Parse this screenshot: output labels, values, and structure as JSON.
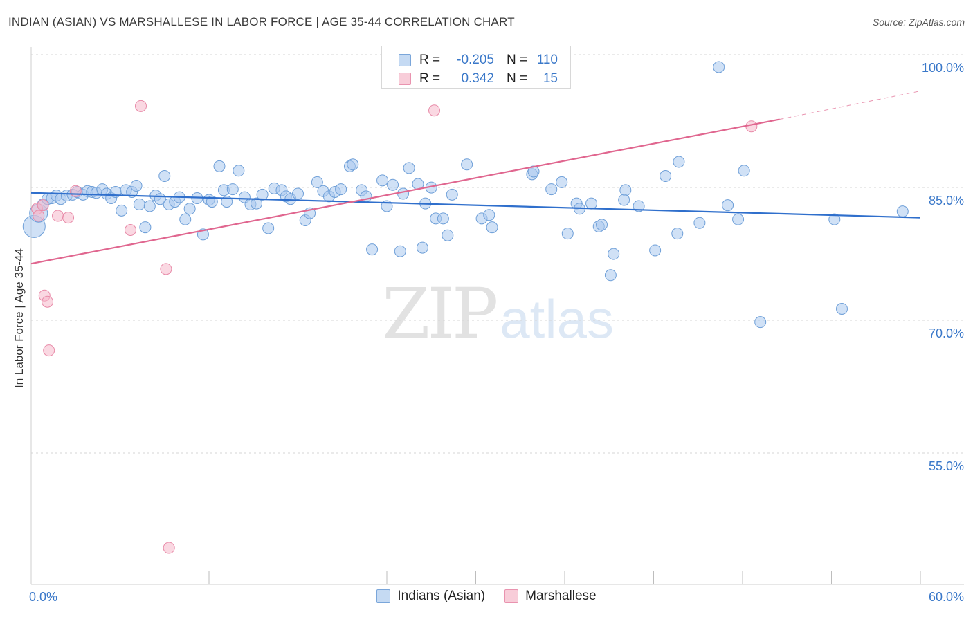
{
  "header": {
    "title": "INDIAN (ASIAN) VS MARSHALLESE IN LABOR FORCE | AGE 35-44 CORRELATION CHART",
    "source": "Source: ZipAtlas.com"
  },
  "legend": {
    "rows": [
      {
        "r_label": "R =",
        "r_value": "-0.205",
        "n_label": "N =",
        "n_value": "110"
      },
      {
        "r_label": "R =",
        "r_value": "0.342",
        "n_label": "N =",
        "n_value": "15"
      }
    ]
  },
  "bottom_legend": {
    "items": [
      {
        "label": "Indians (Asian)"
      },
      {
        "label": "Marshallese"
      }
    ]
  },
  "watermark": {
    "zip": "ZIP",
    "atlas": "atlas"
  },
  "colors": {
    "blue_fill": "#a9c9ee",
    "blue_stroke": "#6e9fd8",
    "blue_line": "#2f6fcc",
    "pink_fill": "#f5b8cb",
    "pink_stroke": "#e88aa8",
    "pink_line": "#e0668f",
    "axis_text": "#3a78c9",
    "grid": "#d6d6d6"
  },
  "chart_data": {
    "type": "scatter",
    "title": "INDIAN (ASIAN) VS MARSHALLESE IN LABOR FORCE | AGE 35-44 CORRELATION CHART",
    "xlabel": "",
    "ylabel": "In Labor Force | Age 35-44",
    "xlim": [
      0,
      60
    ],
    "ylim": [
      40,
      101.5
    ],
    "x_tick_labels": [
      {
        "value": 0,
        "label": "0.0%"
      },
      {
        "value": 60,
        "label": "60.0%"
      }
    ],
    "y_tick_labels": [
      {
        "value": 100,
        "label": "100.0%"
      },
      {
        "value": 85,
        "label": "85.0%"
      },
      {
        "value": 70,
        "label": "70.0%"
      },
      {
        "value": 55,
        "label": "55.0%"
      }
    ],
    "y_gridlines": [
      100,
      85,
      70,
      55
    ],
    "x_minor_ticks": [
      6,
      12,
      18,
      24,
      30,
      36,
      42,
      48,
      54,
      60
    ],
    "series": [
      {
        "name": "Indians (Asian)",
        "trend": {
          "x": [
            0,
            60
          ],
          "y": [
            85.8,
            83.0
          ],
          "dashed_after": null
        },
        "points": [
          {
            "x": 0.2,
            "y": 82.0,
            "r": 16
          },
          {
            "x": 0.5,
            "y": 83.5,
            "r": 13
          },
          {
            "x": 0.8,
            "y": 84.5
          },
          {
            "x": 1.1,
            "y": 85.1
          },
          {
            "x": 1.4,
            "y": 85.2
          },
          {
            "x": 1.7,
            "y": 85.5
          },
          {
            "x": 2.0,
            "y": 85.1
          },
          {
            "x": 2.4,
            "y": 85.5
          },
          {
            "x": 2.8,
            "y": 85.6
          },
          {
            "x": 3.1,
            "y": 85.9
          },
          {
            "x": 3.5,
            "y": 85.6
          },
          {
            "x": 3.8,
            "y": 86.0
          },
          {
            "x": 4.1,
            "y": 85.9
          },
          {
            "x": 4.4,
            "y": 85.8
          },
          {
            "x": 4.8,
            "y": 86.2
          },
          {
            "x": 5.1,
            "y": 85.7
          },
          {
            "x": 5.4,
            "y": 85.2
          },
          {
            "x": 5.7,
            "y": 85.9
          },
          {
            "x": 6.1,
            "y": 83.8
          },
          {
            "x": 6.4,
            "y": 86.1
          },
          {
            "x": 6.8,
            "y": 85.9
          },
          {
            "x": 7.1,
            "y": 86.6
          },
          {
            "x": 7.3,
            "y": 84.5
          },
          {
            "x": 7.7,
            "y": 81.9
          },
          {
            "x": 8.0,
            "y": 84.3
          },
          {
            "x": 8.4,
            "y": 85.5
          },
          {
            "x": 8.7,
            "y": 85.1
          },
          {
            "x": 9.0,
            "y": 87.7
          },
          {
            "x": 9.3,
            "y": 84.5
          },
          {
            "x": 9.7,
            "y": 84.8
          },
          {
            "x": 10.0,
            "y": 85.3
          },
          {
            "x": 10.4,
            "y": 82.8
          },
          {
            "x": 10.7,
            "y": 84.0
          },
          {
            "x": 11.2,
            "y": 85.2
          },
          {
            "x": 11.6,
            "y": 81.1
          },
          {
            "x": 12.0,
            "y": 85.0
          },
          {
            "x": 12.2,
            "y": 84.8
          },
          {
            "x": 12.7,
            "y": 88.8
          },
          {
            "x": 13.0,
            "y": 86.1
          },
          {
            "x": 13.2,
            "y": 84.8
          },
          {
            "x": 13.6,
            "y": 86.2
          },
          {
            "x": 14.0,
            "y": 88.3
          },
          {
            "x": 14.4,
            "y": 85.3
          },
          {
            "x": 14.8,
            "y": 84.5
          },
          {
            "x": 15.2,
            "y": 84.6
          },
          {
            "x": 15.6,
            "y": 85.6
          },
          {
            "x": 16.0,
            "y": 81.8
          },
          {
            "x": 16.4,
            "y": 86.3
          },
          {
            "x": 16.9,
            "y": 86.1
          },
          {
            "x": 17.2,
            "y": 85.4
          },
          {
            "x": 17.5,
            "y": 85.1
          },
          {
            "x": 18.0,
            "y": 85.7
          },
          {
            "x": 18.5,
            "y": 82.7
          },
          {
            "x": 18.8,
            "y": 83.5
          },
          {
            "x": 19.3,
            "y": 87.0
          },
          {
            "x": 19.7,
            "y": 86.0
          },
          {
            "x": 20.1,
            "y": 85.4
          },
          {
            "x": 20.5,
            "y": 85.9
          },
          {
            "x": 20.9,
            "y": 86.2
          },
          {
            "x": 21.5,
            "y": 88.8
          },
          {
            "x": 21.7,
            "y": 89.0
          },
          {
            "x": 22.3,
            "y": 86.1
          },
          {
            "x": 22.6,
            "y": 85.4
          },
          {
            "x": 23.0,
            "y": 79.4
          },
          {
            "x": 23.7,
            "y": 87.2
          },
          {
            "x": 24.0,
            "y": 84.3
          },
          {
            "x": 24.4,
            "y": 86.7
          },
          {
            "x": 24.9,
            "y": 79.2
          },
          {
            "x": 25.1,
            "y": 85.7
          },
          {
            "x": 25.5,
            "y": 88.6
          },
          {
            "x": 26.1,
            "y": 86.8
          },
          {
            "x": 26.4,
            "y": 79.6
          },
          {
            "x": 26.6,
            "y": 84.6
          },
          {
            "x": 27.0,
            "y": 86.4
          },
          {
            "x": 27.3,
            "y": 82.9
          },
          {
            "x": 27.8,
            "y": 82.9
          },
          {
            "x": 28.1,
            "y": 81.0
          },
          {
            "x": 28.4,
            "y": 85.6
          },
          {
            "x": 29.4,
            "y": 89.0
          },
          {
            "x": 30.4,
            "y": 82.9
          },
          {
            "x": 30.9,
            "y": 83.3
          },
          {
            "x": 31.1,
            "y": 81.9
          },
          {
            "x": 33.8,
            "y": 87.9
          },
          {
            "x": 33.9,
            "y": 88.2
          },
          {
            "x": 35.1,
            "y": 86.2
          },
          {
            "x": 35.8,
            "y": 87.0
          },
          {
            "x": 36.2,
            "y": 81.2
          },
          {
            "x": 36.8,
            "y": 84.6
          },
          {
            "x": 37.0,
            "y": 84.0
          },
          {
            "x": 37.8,
            "y": 84.6
          },
          {
            "x": 38.3,
            "y": 82.0
          },
          {
            "x": 38.5,
            "y": 82.2
          },
          {
            "x": 39.3,
            "y": 78.9
          },
          {
            "x": 39.1,
            "y": 76.5
          },
          {
            "x": 40.1,
            "y": 86.1
          },
          {
            "x": 40.0,
            "y": 85.0
          },
          {
            "x": 41.0,
            "y": 84.3
          },
          {
            "x": 42.1,
            "y": 79.3
          },
          {
            "x": 42.8,
            "y": 87.7
          },
          {
            "x": 43.6,
            "y": 81.2
          },
          {
            "x": 43.7,
            "y": 89.3
          },
          {
            "x": 45.1,
            "y": 82.4
          },
          {
            "x": 46.4,
            "y": 100.0
          },
          {
            "x": 47.0,
            "y": 84.4
          },
          {
            "x": 47.7,
            "y": 82.8
          },
          {
            "x": 48.1,
            "y": 88.3
          },
          {
            "x": 49.2,
            "y": 71.2
          },
          {
            "x": 54.2,
            "y": 82.8
          },
          {
            "x": 54.7,
            "y": 72.7
          },
          {
            "x": 58.8,
            "y": 83.7
          }
        ]
      },
      {
        "name": "Marshallese",
        "trend": {
          "x": [
            0,
            50.5
          ],
          "y": [
            77.8,
            94.1
          ],
          "dashed_x": [
            50.5,
            60
          ],
          "dashed_y": [
            94.1,
            97.3
          ]
        },
        "points": [
          {
            "x": 0.4,
            "y": 84.0
          },
          {
            "x": 0.5,
            "y": 83.2
          },
          {
            "x": 0.8,
            "y": 84.4
          },
          {
            "x": 0.9,
            "y": 74.2
          },
          {
            "x": 1.1,
            "y": 73.5
          },
          {
            "x": 1.2,
            "y": 68.0
          },
          {
            "x": 1.8,
            "y": 83.2
          },
          {
            "x": 2.5,
            "y": 83.0
          },
          {
            "x": 3.0,
            "y": 86.0
          },
          {
            "x": 6.7,
            "y": 81.6
          },
          {
            "x": 7.4,
            "y": 95.6
          },
          {
            "x": 9.1,
            "y": 77.2
          },
          {
            "x": 9.3,
            "y": 45.7
          },
          {
            "x": 27.2,
            "y": 95.1
          },
          {
            "x": 48.6,
            "y": 93.3
          }
        ]
      }
    ]
  }
}
